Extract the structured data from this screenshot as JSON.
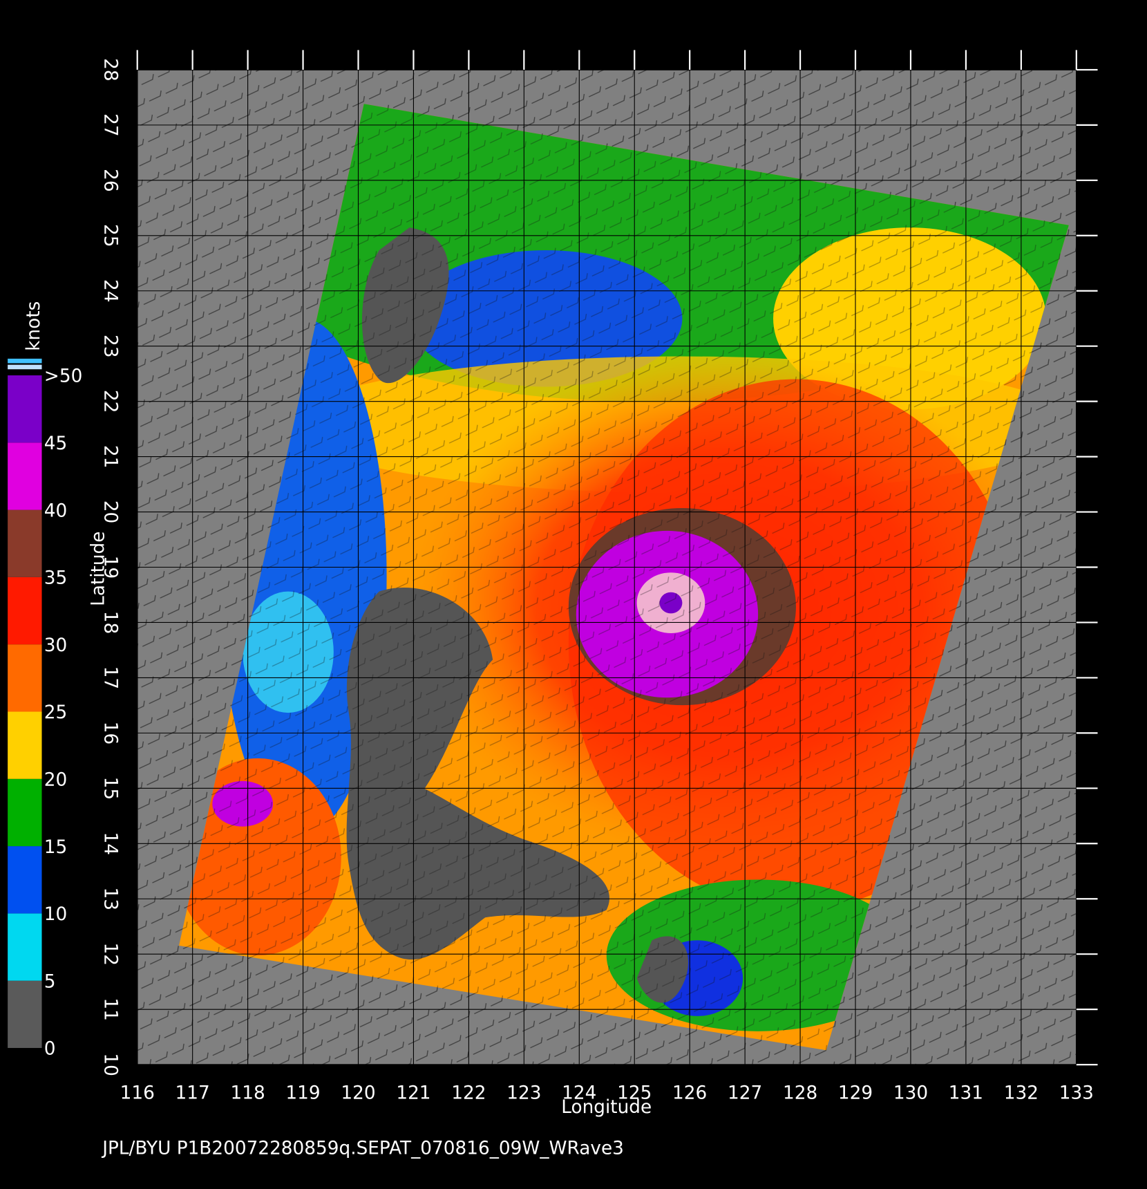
{
  "map": {
    "footer": "JPL/BYU  P1B20072280859q.SEPAT_070816_09W_WRave3",
    "x_axis": {
      "label": "Longitude",
      "lim": [
        116,
        133
      ],
      "ticks": [
        116,
        117,
        118,
        119,
        120,
        121,
        122,
        123,
        124,
        125,
        126,
        127,
        128,
        129,
        130,
        131,
        132,
        133
      ]
    },
    "y_axis": {
      "label": "Latitude",
      "lim": [
        10,
        28
      ],
      "ticks": [
        10,
        11,
        12,
        13,
        14,
        15,
        16,
        17,
        18,
        19,
        20,
        21,
        22,
        23,
        24,
        25,
        26,
        27,
        28
      ]
    },
    "colorbar": {
      "label": "knots",
      "lim": [
        0,
        50
      ],
      "ticks": [
        0,
        5,
        10,
        15,
        20,
        25,
        30,
        35,
        40,
        45,
        {
          "value": 50,
          "label": ">50"
        }
      ],
      "colors": [
        "#5a5a5a",
        "#00d8f0",
        "#0050f0",
        "#00b000",
        "#ffd000",
        "#ff6a00",
        "#ff1a00",
        "#8a3a2a",
        "#e000e0",
        "#7a00c8"
      ]
    }
  }
}
